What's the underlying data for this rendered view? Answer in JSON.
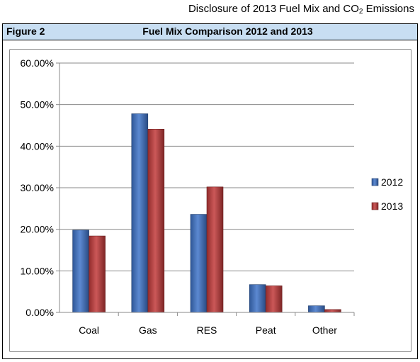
{
  "document": {
    "header_prefix": "Disclosure of 2013 Fuel Mix and CO",
    "header_sub": "2",
    "header_suffix": " Emissions",
    "figure_label": "Figure 2",
    "figure_title": "Fuel Mix Comparison 2012 and 2013"
  },
  "chart_data": {
    "type": "bar",
    "title": "",
    "xlabel": "",
    "ylabel": "",
    "categories": [
      "Coal",
      "Gas",
      "RES",
      "Peat",
      "Other"
    ],
    "series": [
      {
        "name": "2012",
        "values": [
          19.8,
          47.8,
          23.6,
          6.7,
          1.6
        ],
        "color": "#3f74c9"
      },
      {
        "name": "2013",
        "values": [
          18.4,
          44.1,
          30.2,
          6.4,
          0.7
        ],
        "color": "#c23b3b"
      }
    ],
    "y_ticks": [
      "0.00%",
      "10.00%",
      "20.00%",
      "30.00%",
      "40.00%",
      "50.00%",
      "60.00%"
    ],
    "ylim": [
      0,
      60
    ],
    "grid": true,
    "legend_position": "right"
  }
}
